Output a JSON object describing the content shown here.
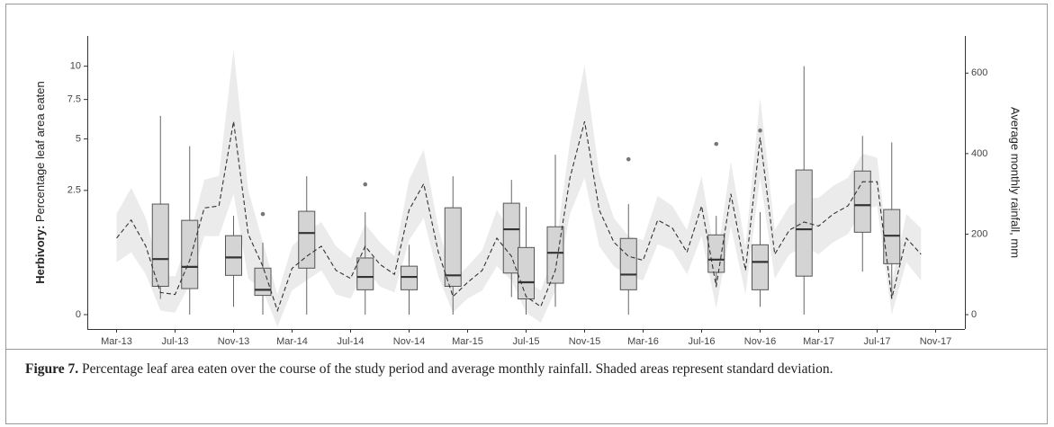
{
  "chart_data": {
    "type": "box",
    "ylabel_bold": "Herbivory:",
    "ylabel": "Percentage leaf area eaten",
    "y2label": "Average monthly rainfall, mm",
    "caption_label": "Figure 7.",
    "caption": "Percentage leaf area eaten over the course of the study period and average monthly rainfall. Shaded areas represent standard deviation.",
    "xlim": [
      "Jan-13",
      "Jan-18"
    ],
    "xticks": [
      "Mar-13",
      "Jul-13",
      "Nov-13",
      "Mar-14",
      "Jul-14",
      "Nov-14",
      "Mar-15",
      "Jul-15",
      "Nov-15",
      "Mar-16",
      "Jul-16",
      "Nov-16",
      "Mar-17",
      "Jul-17",
      "Nov-17"
    ],
    "yscale": "sqrt",
    "ylim": [
      0,
      12.5
    ],
    "yticks": [
      0,
      2.5,
      5,
      7.5,
      10
    ],
    "y2lim": [
      0,
      690
    ],
    "y2ticks": [
      0,
      200,
      400,
      600
    ],
    "box_color": "#d4d4d4",
    "boxes": [
      {
        "x": "Jun-13",
        "low": 0.04,
        "q1": 0.13,
        "median": 0.5,
        "q3": 1.98,
        "high": 6.4,
        "outliers": []
      },
      {
        "x": "Aug-13",
        "low": 0.0,
        "q1": 0.11,
        "median": 0.37,
        "q3": 1.44,
        "high": 4.6,
        "outliers": []
      },
      {
        "x": "Nov-13",
        "low": 0.01,
        "q1": 0.25,
        "median": 0.53,
        "q3": 1.01,
        "high": 1.58,
        "outliers": []
      },
      {
        "x": "Jan-14",
        "low": 0.0,
        "q1": 0.06,
        "median": 0.1,
        "q3": 0.35,
        "high": 0.84,
        "outliers": [
          1.64
        ]
      },
      {
        "x": "Apr-14",
        "low": 0.0,
        "q1": 0.35,
        "median": 1.08,
        "q3": 1.73,
        "high": 3.1,
        "outliers": []
      },
      {
        "x": "Aug-14",
        "low": 0.0,
        "q1": 0.1,
        "median": 0.23,
        "q3": 0.52,
        "high": 1.7,
        "outliers": [
          2.75
        ]
      },
      {
        "x": "Nov-14",
        "low": 0.0,
        "q1": 0.1,
        "median": 0.23,
        "q3": 0.38,
        "high": 0.79,
        "outliers": []
      },
      {
        "x": "Feb-15",
        "low": 0.0,
        "q1": 0.13,
        "median": 0.25,
        "q3": 1.85,
        "high": 3.1,
        "outliers": []
      },
      {
        "x": "Jun-15",
        "low": 0.05,
        "q1": 0.28,
        "median": 1.18,
        "q3": 2.01,
        "high": 2.94,
        "outliers": []
      },
      {
        "x": "Jul-15",
        "low": 0.0,
        "q1": 0.04,
        "median": 0.17,
        "q3": 0.73,
        "high": 1.88,
        "outliers": []
      },
      {
        "x": "Sep-15",
        "low": 0.01,
        "q1": 0.16,
        "median": 0.62,
        "q3": 1.25,
        "high": 4.14,
        "outliers": []
      },
      {
        "x": "Feb-16",
        "low": 0.0,
        "q1": 0.1,
        "median": 0.26,
        "q3": 0.94,
        "high": 1.98,
        "outliers": [
          3.91
        ]
      },
      {
        "x": "Aug-16",
        "low": 0.12,
        "q1": 0.29,
        "median": 0.49,
        "q3": 1.03,
        "high": 1.58,
        "outliers": [
          4.72
        ]
      },
      {
        "x": "Nov-16",
        "low": 0.01,
        "q1": 0.1,
        "median": 0.45,
        "q3": 0.79,
        "high": 1.7,
        "outliers": [
          5.49
        ]
      },
      {
        "x": "Feb-17",
        "low": 0.0,
        "q1": 0.24,
        "median": 1.18,
        "q3": 3.39,
        "high": 10.0,
        "outliers": []
      },
      {
        "x": "Jun-17",
        "low": 0.3,
        "q1": 1.1,
        "median": 1.94,
        "q3": 3.34,
        "high": 5.17,
        "outliers": []
      },
      {
        "x": "Aug-17",
        "low": 0.04,
        "q1": 0.42,
        "median": 1.01,
        "q3": 1.79,
        "high": 4.81,
        "outliers": []
      }
    ],
    "rainfall": {
      "axis": "y2",
      "color": "#333333",
      "band_color": "#ebebeb",
      "x": [
        "Mar-13",
        "Apr-13",
        "May-13",
        "Jun-13",
        "Jul-13",
        "Aug-13",
        "Sep-13",
        "Oct-13",
        "Nov-13",
        "Dec-13",
        "Jan-14",
        "Feb-14",
        "Mar-14",
        "Apr-14",
        "May-14",
        "Jun-14",
        "Jul-14",
        "Aug-14",
        "Sep-14",
        "Oct-14",
        "Nov-14",
        "Dec-14",
        "Jan-15",
        "Feb-15",
        "Mar-15",
        "Apr-15",
        "May-15",
        "Jun-15",
        "Jul-15",
        "Aug-15",
        "Sep-15",
        "Oct-15",
        "Nov-15",
        "Dec-15",
        "Jan-16",
        "Feb-16",
        "Mar-16",
        "Apr-16",
        "May-16",
        "Jun-16",
        "Jul-16",
        "Aug-16",
        "Sep-16",
        "Oct-16",
        "Nov-16",
        "Dec-16",
        "Jan-17",
        "Feb-17",
        "Mar-17",
        "Apr-17",
        "May-17",
        "Jun-17",
        "Jul-17",
        "Aug-17",
        "Sep-17",
        "Oct-17"
      ],
      "values": [
        190,
        235,
        170,
        55,
        50,
        135,
        265,
        270,
        480,
        200,
        120,
        10,
        115,
        145,
        170,
        110,
        90,
        170,
        125,
        100,
        260,
        325,
        155,
        45,
        80,
        110,
        190,
        145,
        45,
        20,
        110,
        340,
        480,
        260,
        180,
        145,
        135,
        235,
        215,
        155,
        270,
        70,
        300,
        110,
        440,
        150,
        210,
        230,
        220,
        250,
        270,
        330,
        330,
        40,
        190,
        150
      ],
      "sd": [
        60,
        80,
        70,
        45,
        45,
        60,
        70,
        75,
        180,
        110,
        60,
        40,
        55,
        60,
        60,
        60,
        50,
        55,
        55,
        45,
        75,
        85,
        60,
        40,
        40,
        50,
        70,
        60,
        40,
        40,
        50,
        90,
        140,
        90,
        60,
        50,
        50,
        60,
        55,
        55,
        75,
        55,
        80,
        60,
        100,
        60,
        60,
        60,
        70,
        70,
        70,
        70,
        60,
        40,
        60,
        65
      ]
    }
  }
}
